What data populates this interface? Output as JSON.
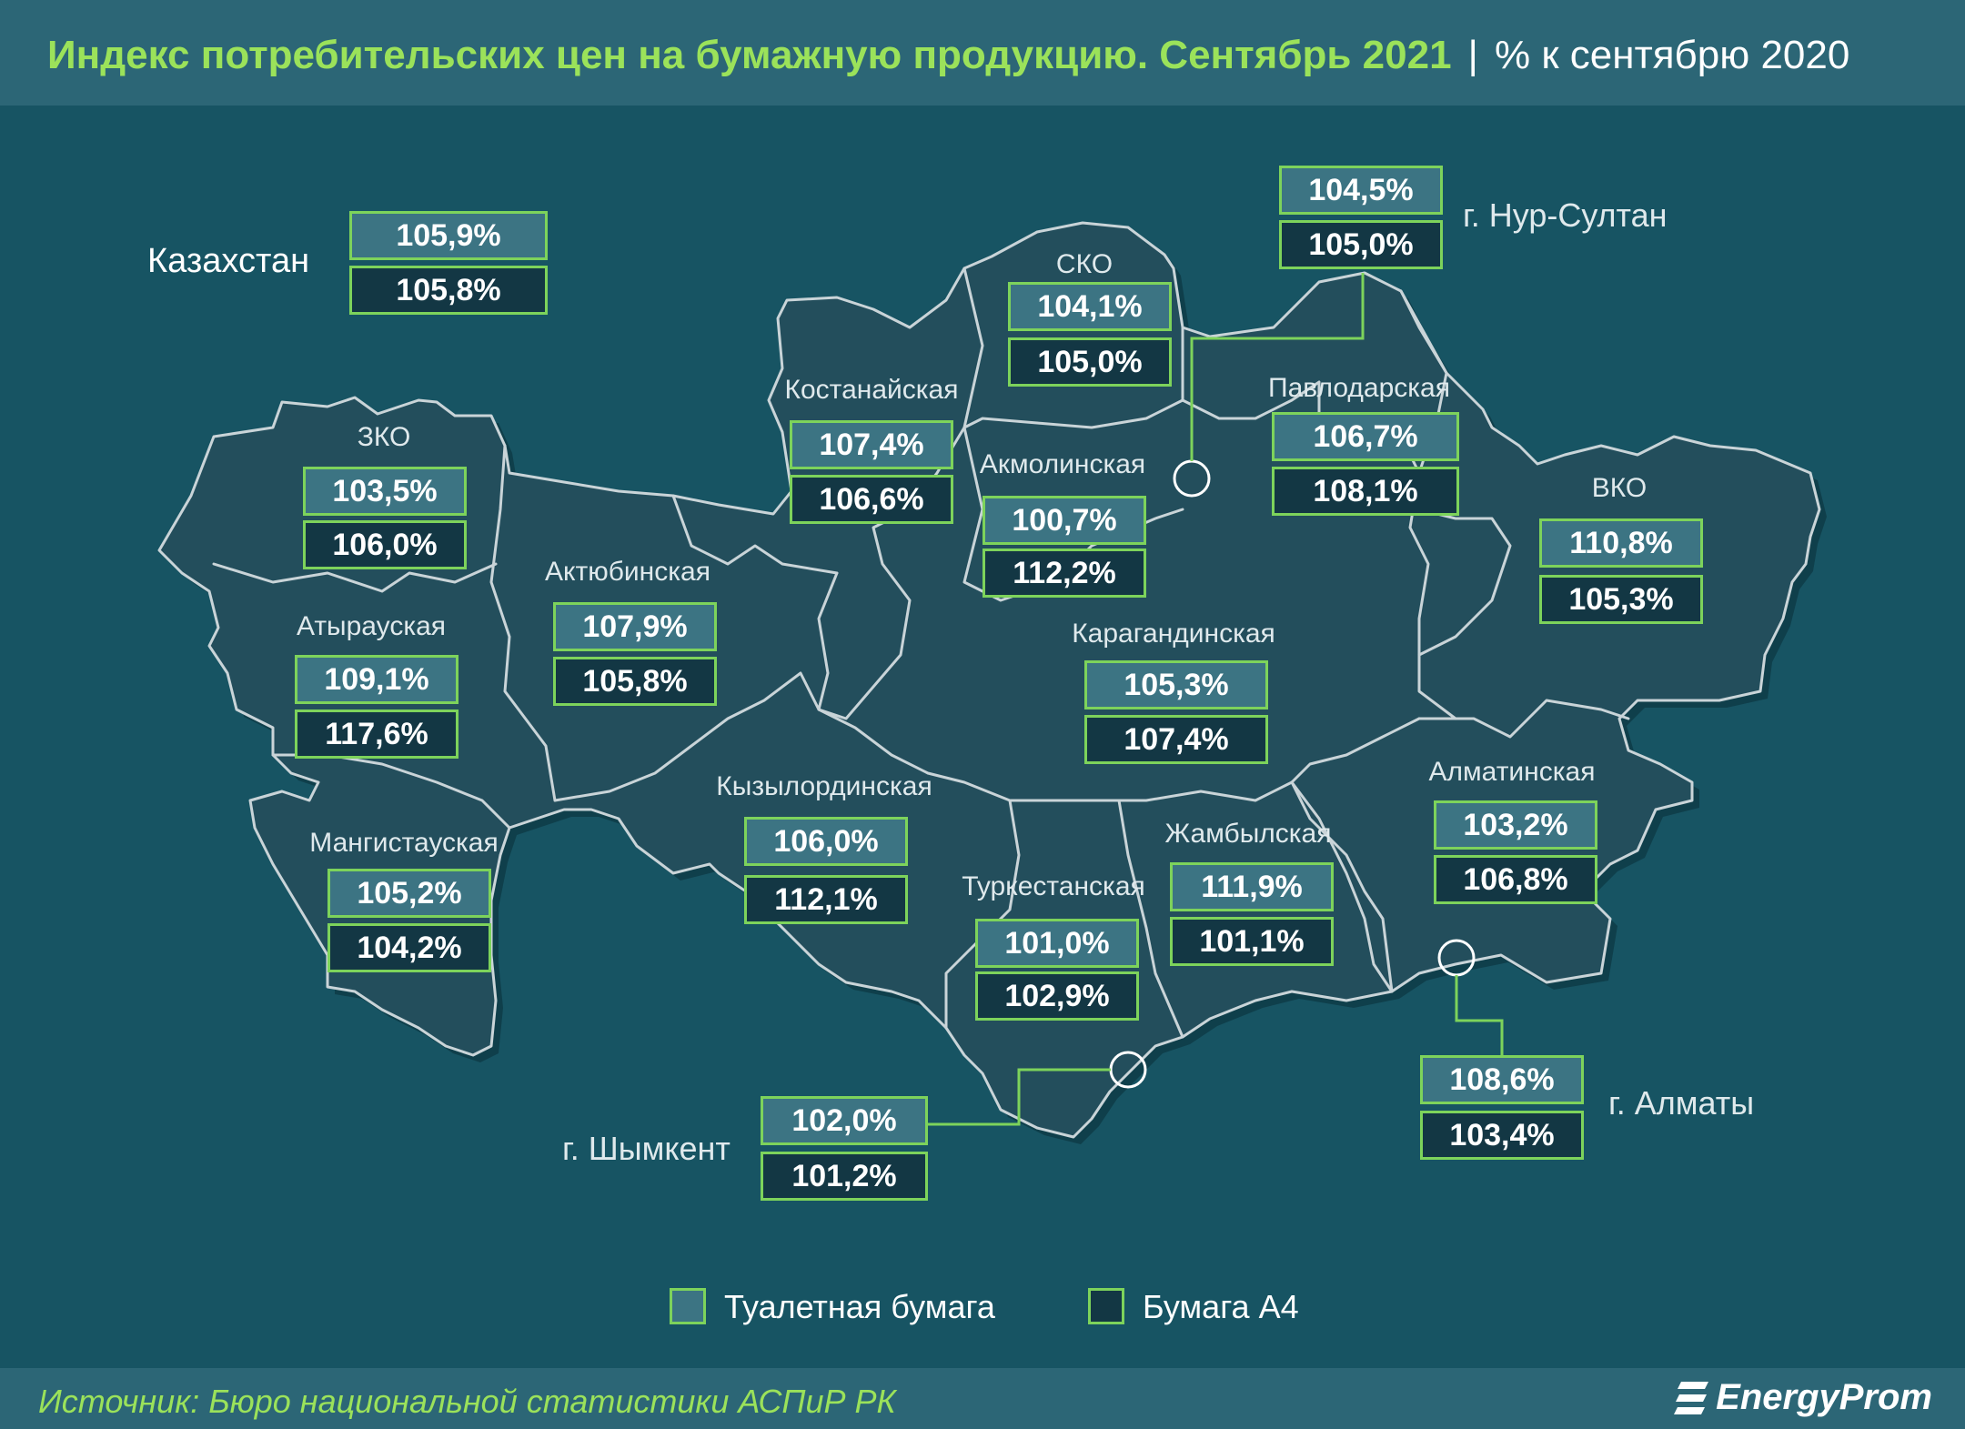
{
  "title": {
    "main": "Индекс потребительских цен на бумажную продукцию. Сентябрь 2021",
    "separator": "|",
    "unit": "% к сентябрю 2020"
  },
  "kazakhstan": {
    "label": "Казахстан",
    "toilet_paper": "105,9%",
    "paper_a4": "105,8%"
  },
  "regions": [
    {
      "id": "zko",
      "label": "ЗКО",
      "toilet_paper": "103,5%",
      "paper_a4": "106,0%"
    },
    {
      "id": "atyrau",
      "label": "Атырауская",
      "toilet_paper": "109,1%",
      "paper_a4": "117,6%"
    },
    {
      "id": "mangistau",
      "label": "Мангистауская",
      "toilet_paper": "105,2%",
      "paper_a4": "104,2%"
    },
    {
      "id": "aktobe",
      "label": "Актюбинская",
      "toilet_paper": "107,9%",
      "paper_a4": "105,8%"
    },
    {
      "id": "kostanay",
      "label": "Костанайская",
      "toilet_paper": "107,4%",
      "paper_a4": "106,6%"
    },
    {
      "id": "sko",
      "label": "СКО",
      "toilet_paper": "104,1%",
      "paper_a4": "105,0%"
    },
    {
      "id": "akmola",
      "label": "Акмолинская",
      "toilet_paper": "100,7%",
      "paper_a4": "112,2%"
    },
    {
      "id": "pavlodar",
      "label": "Павлодарская",
      "toilet_paper": "106,7%",
      "paper_a4": "108,1%"
    },
    {
      "id": "vko",
      "label": "ВКО",
      "toilet_paper": "110,8%",
      "paper_a4": "105,3%"
    },
    {
      "id": "karaganda",
      "label": "Карагандинская",
      "toilet_paper": "105,3%",
      "paper_a4": "107,4%"
    },
    {
      "id": "kyzylorda",
      "label": "Кызылординская",
      "toilet_paper": "106,0%",
      "paper_a4": "112,1%"
    },
    {
      "id": "turkestan",
      "label": "Туркестанская",
      "toilet_paper": "101,0%",
      "paper_a4": "102,9%"
    },
    {
      "id": "zhambyl",
      "label": "Жамбылская",
      "toilet_paper": "111,9%",
      "paper_a4": "101,1%"
    },
    {
      "id": "almaty_reg",
      "label": "Алматинская",
      "toilet_paper": "103,2%",
      "paper_a4": "106,8%"
    }
  ],
  "cities": [
    {
      "id": "nur_sultan",
      "label": "г. Нур-Султан",
      "toilet_paper": "104,5%",
      "paper_a4": "105,0%"
    },
    {
      "id": "shymkent",
      "label": "г. Шымкент",
      "toilet_paper": "102,0%",
      "paper_a4": "101,2%"
    },
    {
      "id": "almaty",
      "label": "г. Алматы",
      "toilet_paper": "108,6%",
      "paper_a4": "103,4%"
    }
  ],
  "legend": {
    "toilet_paper": "Туалетная бумага",
    "paper_a4": "Бумага А4"
  },
  "source": "Источник: Бюро национальной статистики АСПиР РК",
  "logo": "EnergyProm",
  "colors": {
    "background": "#175463",
    "map_fill": "#234e5c",
    "border": "#c9d4d8",
    "accent": "#7dd35b",
    "title": "#9be25a",
    "toilet_paper_box": "#3c7483",
    "paper_a4_box": "#133744"
  }
}
